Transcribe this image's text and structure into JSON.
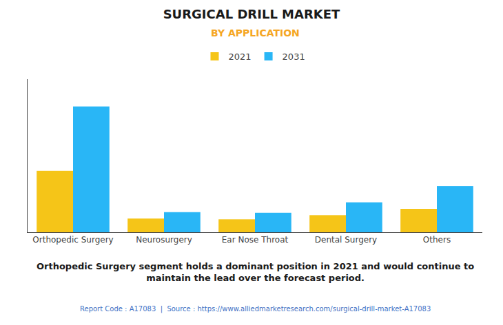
{
  "chart_data": {
    "type": "bar",
    "title": "SURGICAL DRILL MARKET",
    "subtitle": "BY APPLICATION",
    "categories": [
      "Orthopedic Surgery",
      "Neurosurgery",
      "Ear Nose Throat",
      "Dental Surgery",
      "Others"
    ],
    "series": [
      {
        "name": "2021",
        "color": "#F5C518",
        "values": [
          3.8,
          0.85,
          0.8,
          1.05,
          1.45
        ]
      },
      {
        "name": "2031",
        "color": "#29B6F6",
        "values": [
          7.8,
          1.25,
          1.2,
          1.85,
          2.85
        ]
      }
    ],
    "ylim": [
      0,
      9.5
    ],
    "yticks": [],
    "grid": false,
    "tick_labels": "x",
    "legend": "top",
    "annotation": "Orthopedic Surgery segment holds a dominant position in 2021 and would continue to\nmaintain the lead over the forecast period.",
    "footer": "Report Code : A17083  |  Source : https://www.alliedmarketresearch.com/surgical-drill-market-A17083"
  }
}
